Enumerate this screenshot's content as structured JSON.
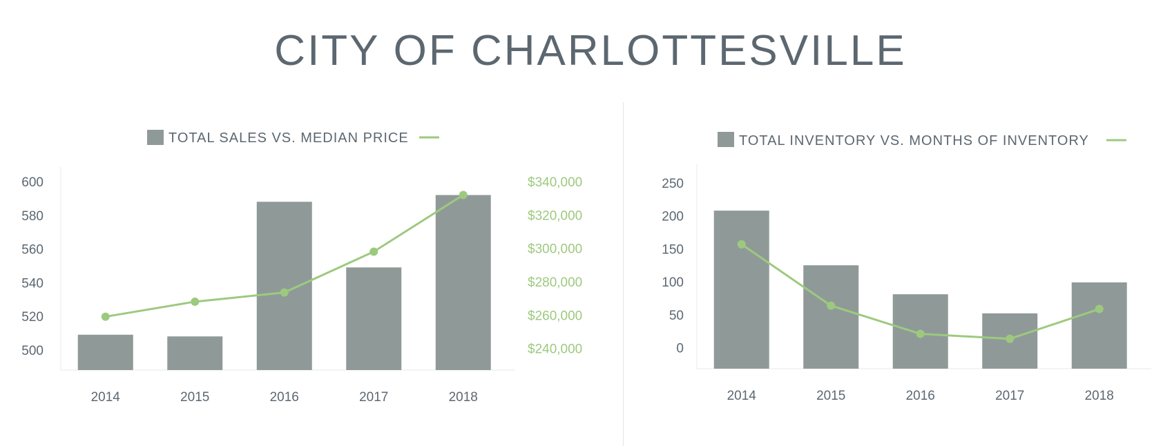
{
  "page": {
    "title": "CITY OF CHARLOTTESVILLE"
  },
  "colors": {
    "bar": "#8f9a98",
    "line": "#9dc97f",
    "text": "#5c6770"
  },
  "chart_data": [
    {
      "type": "bar",
      "title": "TOTAL SALES VS. MEDIAN PRICE",
      "categories": [
        "2014",
        "2015",
        "2016",
        "2017",
        "2018"
      ],
      "series": [
        {
          "type": "bar",
          "axis": "left",
          "values": [
            509,
            508,
            588,
            549,
            592
          ]
        },
        {
          "type": "line",
          "axis": "right",
          "values": [
            259000,
            268000,
            273500,
            298000,
            332000
          ]
        }
      ],
      "y_left": {
        "ticks": [
          500,
          520,
          540,
          560,
          580,
          600
        ],
        "tick_labels": [
          "500",
          "520",
          "540",
          "560",
          "580",
          "600"
        ],
        "range": [
          488,
          600
        ]
      },
      "y_right": {
        "ticks": [
          240000,
          260000,
          280000,
          300000,
          320000,
          340000
        ],
        "tick_labels": [
          "$240,000",
          "$260,000",
          "$280,000",
          "$300,000",
          "$320,000",
          "$340,000"
        ],
        "range": [
          227000,
          340000
        ]
      },
      "legend": "top-center"
    },
    {
      "type": "bar",
      "title": "TOTAL INVENTORY VS. MONTHS OF INVENTORY",
      "categories": [
        "2014",
        "2015",
        "2016",
        "2017",
        "2018"
      ],
      "series": [
        {
          "type": "bar",
          "axis": "left",
          "values": [
            208,
            125,
            81,
            52,
            99
          ]
        },
        {
          "type": "line",
          "axis": "right",
          "values": [
            6.3,
            2.6,
            0.9,
            0.6,
            2.4
          ]
        }
      ],
      "y_left": {
        "ticks": [
          0,
          50,
          100,
          150,
          200,
          250
        ],
        "tick_labels": [
          "0",
          "50",
          "100",
          "150",
          "200",
          "250"
        ],
        "range": [
          -32,
          250
        ]
      },
      "y_right": {
        "range": [
          -1.2,
          10
        ]
      },
      "legend": "top-center"
    }
  ]
}
